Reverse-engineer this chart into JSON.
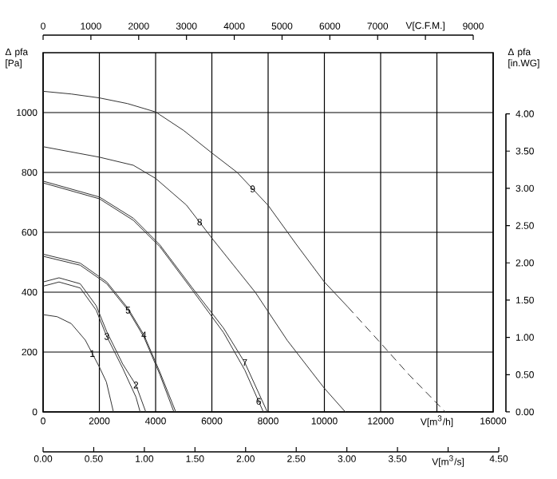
{
  "chart_data": {
    "type": "line",
    "xlabel": "V[m$^{3}$/h]",
    "x2label": "V[C.F.M.]",
    "ylabel": "Δ pfa [Pa]",
    "y2label": "Δ pfa [in.WG]",
    "xlim": [
      0,
      16000
    ],
    "ylim": [
      0,
      1200
    ],
    "xticks": [
      0,
      2000,
      4000,
      6000,
      8000,
      10000,
      12000,
      {
        "value": 14000,
        "label": null
      },
      16000
    ],
    "yticks": [
      0,
      200,
      400,
      600,
      800,
      1000
    ],
    "x2lim": [
      0,
      9417
    ],
    "x2ticks": [
      0,
      1000,
      2000,
      3000,
      4000,
      5000,
      6000,
      7000,
      {
        "value": 8000,
        "label": null
      },
      9000
    ],
    "y2lim": [
      0,
      4.82
    ],
    "y2ticks": [
      {
        "value": 0,
        "label": "0.00"
      },
      {
        "value": 0.5,
        "label": "0.50"
      },
      {
        "value": 1.0,
        "label": "1.00"
      },
      {
        "value": 1.5,
        "label": "1.50"
      },
      {
        "value": 2.0,
        "label": "2.00"
      },
      {
        "value": 2.5,
        "label": "2.50"
      },
      {
        "value": 3.0,
        "label": "3.00"
      },
      {
        "value": 3.5,
        "label": "3.50"
      },
      {
        "value": 4.0,
        "label": "4.00"
      }
    ],
    "grid": true,
    "marker": "none",
    "series": [
      {
        "color": "#333333",
        "line_style": "solid",
        "x": [
          0,
          500,
          1000,
          1500,
          2000,
          2250,
          2500
        ],
        "values": [
          325,
          318,
          295,
          240,
          150,
          100,
          0
        ]
      },
      {
        "color": "#333333",
        "line_style": "solid",
        "x": [
          0,
          566,
          1320,
          1887,
          2264,
          2830,
          3300,
          3650
        ],
        "values": [
          434,
          448,
          428,
          355,
          268,
          160,
          90,
          0
        ]
      },
      {
        "color": "#333333",
        "line_style": "solid",
        "x": [
          0,
          566,
          1320,
          1887,
          2264,
          2830,
          3300,
          3450
        ],
        "values": [
          420,
          434,
          414,
          340,
          252,
          146,
          50,
          0
        ]
      },
      {
        "color": "#333333",
        "line_style": "solid",
        "x": [
          0,
          1320,
          2264,
          3019,
          3585,
          4151,
          4717
        ],
        "values": [
          527,
          497,
          434,
          346,
          257,
          133,
          0
        ]
      },
      {
        "color": "#333333",
        "line_style": "solid",
        "x": [
          0,
          1320,
          2264,
          3019,
          3585,
          4151,
          4650
        ],
        "values": [
          520,
          490,
          428,
          340,
          250,
          125,
          0
        ]
      },
      {
        "color": "#333333",
        "line_style": "solid",
        "x": [
          0,
          2000,
          3208,
          4151,
          5283,
          6415,
          7170,
          7830
        ],
        "values": [
          765,
          712,
          640,
          552,
          410,
          265,
          140,
          0
        ]
      },
      {
        "color": "#333333",
        "line_style": "solid",
        "x": [
          0,
          2000,
          3208,
          4151,
          5283,
          6415,
          7170,
          7970
        ],
        "values": [
          771,
          718,
          647,
          558,
          417,
          280,
          165,
          0
        ]
      },
      {
        "color": "#333333",
        "line_style": "solid",
        "x": [
          0,
          2000,
          3208,
          4000,
          5095,
          6038,
          7548,
          8680,
          9990,
          10745
        ],
        "values": [
          886,
          851,
          824,
          780,
          691,
          576,
          399,
          239,
          80,
          0
        ]
      },
      {
        "color": "#333333",
        "line_style": "solid",
        "x": [
          0,
          1000,
          2000,
          3000,
          4000,
          5000,
          6000,
          6900,
          8000,
          9000,
          10000,
          10840
        ],
        "values": [
          1071,
          1062,
          1049,
          1030,
          1002,
          940,
          865,
          800,
          690,
          560,
          434,
          350
        ]
      },
      {
        "color": "#333333",
        "line_style": "dashed",
        "x": [
          10840,
          12000,
          13000,
          14300
        ],
        "values": [
          350,
          230,
          125,
          0
        ]
      }
    ],
    "annotations": [
      {
        "text": "1",
        "x": 1750,
        "y": 195
      },
      {
        "text": "2",
        "x": 3300,
        "y": 90
      },
      {
        "text": "3",
        "x": 2264,
        "y": 252
      },
      {
        "text": "4",
        "x": 3585,
        "y": 257
      },
      {
        "text": "5",
        "x": 3019,
        "y": 340
      },
      {
        "text": "6",
        "x": 7665,
        "y": 35
      },
      {
        "text": "7",
        "x": 7170,
        "y": 165
      },
      {
        "text": "8",
        "x": 5566,
        "y": 634
      },
      {
        "text": "9",
        "x": 7450,
        "y": 745
      },
      "0.00",
      "0.50",
      "1.00",
      "1.50",
      "2.00",
      "2.50",
      "3.00",
      "3.50",
      "V[m$^{3}$/s]",
      "4.50"
    ]
  }
}
